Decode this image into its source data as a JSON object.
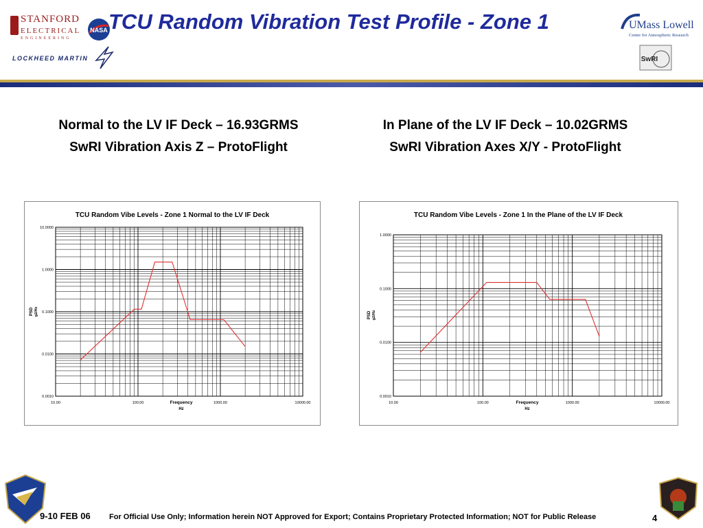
{
  "slide": {
    "title": "TCU Random Vibration Test Profile - Zone 1",
    "left_heading_1": "Normal to the LV IF Deck – 16.93GRMS",
    "left_heading_2": "SwRI Vibration Axis Z – ProtoFlight",
    "right_heading_1": "In Plane of the LV IF Deck – 10.02GRMS",
    "right_heading_2": "SwRI Vibration Axes X/Y - ProtoFlight"
  },
  "logos": {
    "stanford_line1": "STANFORD",
    "stanford_line2": "ELECTRICAL",
    "stanford_line3": "ENGINEERING",
    "nasa": "NASA",
    "lockheed": "LOCKHEED MARTIN",
    "umass_line1": "UMass Lowell",
    "umass_line2": "Center for Atmospheric Research",
    "swri": "SwRI"
  },
  "footer": {
    "date": "9-10 FEB 06",
    "notice": "For Official Use Only; Information herein NOT Approved for Export; Contains Proprietary Protected Information; NOT for Public Release",
    "page": "4"
  },
  "colors": {
    "title": "#1f2a9c",
    "series": "#e03030",
    "grid": "#000000"
  },
  "chart_data": [
    {
      "type": "line",
      "title": "TCU Random Vibe Levels - Zone 1 Normal to the LV IF Deck",
      "xlabel": "Frequency",
      "xunit": "Hz",
      "ylabel": "PSD",
      "yunit": "g2/Hz",
      "xscale": "log",
      "yscale": "log",
      "xlim": [
        10,
        10000
      ],
      "ylim": [
        0.001,
        10
      ],
      "x_ticks": [
        "10.00",
        "100.00",
        "1000.00",
        "10000.00"
      ],
      "y_ticks": [
        "0.0010",
        "0.0100",
        "0.1000",
        "1.0000",
        "10.0000"
      ],
      "grid": true,
      "series": [
        {
          "x": [
            20,
            90,
            110,
            160,
            260,
            430,
            1100,
            2000
          ],
          "y": [
            0.0072,
            0.115,
            0.115,
            1.5,
            1.5,
            0.065,
            0.065,
            0.015
          ]
        }
      ]
    },
    {
      "type": "line",
      "title": "TCU Random Vibe Levels - Zone 1 In the Plane of the LV IF Deck",
      "xlabel": "Frequency",
      "xunit": "Hz",
      "ylabel": "PSD",
      "yunit": "g2/Hz",
      "xscale": "log",
      "yscale": "log",
      "xlim": [
        10,
        10000
      ],
      "ylim": [
        0.001,
        1
      ],
      "x_ticks": [
        "10.00",
        "100.00",
        "1000.00",
        "10000.00"
      ],
      "y_ticks": [
        "0.0010",
        "0.0100",
        "0.1000",
        "1.0000"
      ],
      "grid": true,
      "series": [
        {
          "x": [
            20,
            110,
            400,
            560,
            1400,
            2000
          ],
          "y": [
            0.0065,
            0.13,
            0.13,
            0.063,
            0.063,
            0.013
          ]
        }
      ]
    }
  ]
}
